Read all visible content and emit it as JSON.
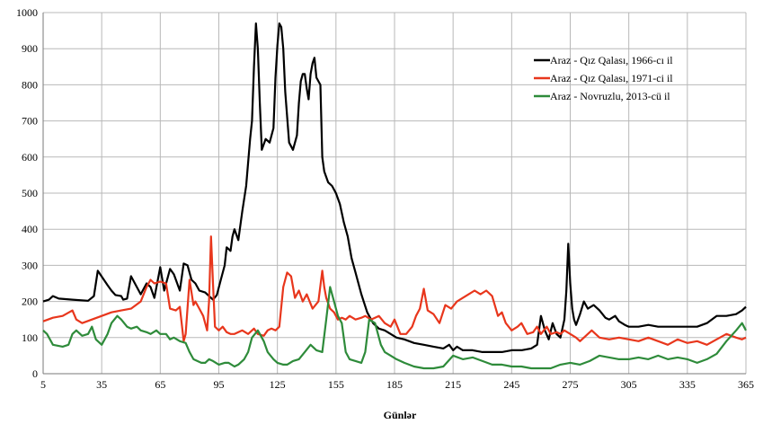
{
  "chart_data": {
    "type": "line",
    "title": "",
    "xlabel": "Günlər",
    "ylabel": "",
    "xlim": [
      5,
      365
    ],
    "ylim": [
      0,
      1000
    ],
    "xticks": [
      5,
      35,
      65,
      95,
      125,
      155,
      185,
      215,
      245,
      275,
      305,
      335,
      365
    ],
    "yticks": [
      0,
      100,
      200,
      300,
      400,
      500,
      600,
      700,
      800,
      900,
      1000
    ],
    "grid": true,
    "legend_position": "top-right",
    "series": [
      {
        "name": "Araz - Qız Qalası, 1966-cı il",
        "color": "#000000",
        "x": [
          5,
          8,
          10,
          13,
          20,
          28,
          31,
          33,
          38,
          40,
          42,
          45,
          46,
          48,
          50,
          55,
          58,
          60,
          62,
          65,
          67,
          70,
          72,
          75,
          77,
          79,
          81,
          83,
          85,
          88,
          90,
          92,
          94,
          96,
          98,
          99,
          101,
          102,
          103,
          105,
          107,
          109,
          111,
          112,
          113,
          114,
          115,
          116,
          117,
          119,
          121,
          123,
          124,
          125,
          126,
          127,
          128,
          129,
          131,
          133,
          135,
          136,
          137,
          138,
          139,
          140,
          141,
          142,
          143,
          144,
          145,
          147,
          148,
          149,
          151,
          153,
          155,
          157,
          159,
          161,
          163,
          165,
          168,
          171,
          174,
          177,
          180,
          183,
          186,
          190,
          195,
          200,
          205,
          210,
          213,
          215,
          217,
          220,
          225,
          230,
          235,
          240,
          245,
          250,
          255,
          258,
          260,
          262,
          264,
          266,
          268,
          270,
          272,
          273,
          274,
          275,
          276,
          277,
          278,
          280,
          282,
          284,
          287,
          290,
          293,
          295,
          298,
          300,
          303,
          305,
          310,
          315,
          320,
          325,
          330,
          335,
          340,
          345,
          350,
          355,
          360,
          363,
          365
        ],
        "values": [
          200,
          205,
          215,
          208,
          205,
          202,
          215,
          285,
          245,
          230,
          218,
          215,
          205,
          208,
          270,
          220,
          250,
          240,
          210,
          295,
          230,
          290,
          275,
          230,
          305,
          300,
          260,
          250,
          230,
          225,
          215,
          205,
          218,
          260,
          300,
          350,
          340,
          380,
          400,
          370,
          450,
          520,
          650,
          700,
          850,
          970,
          900,
          750,
          620,
          650,
          640,
          680,
          820,
          910,
          970,
          960,
          900,
          780,
          640,
          620,
          660,
          750,
          810,
          830,
          830,
          790,
          760,
          830,
          860,
          875,
          820,
          800,
          600,
          560,
          530,
          520,
          500,
          470,
          420,
          380,
          320,
          280,
          220,
          170,
          140,
          125,
          120,
          110,
          100,
          95,
          85,
          80,
          75,
          70,
          80,
          65,
          75,
          65,
          65,
          60,
          60,
          60,
          65,
          65,
          70,
          80,
          160,
          120,
          95,
          140,
          110,
          100,
          150,
          230,
          360,
          250,
          180,
          150,
          135,
          165,
          200,
          180,
          190,
          175,
          155,
          150,
          160,
          145,
          135,
          130,
          130,
          135,
          130,
          130,
          130,
          130,
          130,
          140,
          160,
          160,
          165,
          175,
          185
        ]
      },
      {
        "name": "Araz - Qız Qalası, 1971-ci il",
        "color": "#e8361c",
        "x": [
          5,
          10,
          15,
          20,
          22,
          25,
          30,
          35,
          40,
          45,
          50,
          55,
          58,
          60,
          62,
          65,
          68,
          70,
          73,
          75,
          77,
          78,
          80,
          82,
          83,
          85,
          87,
          89,
          90,
          91,
          92,
          93,
          95,
          97,
          99,
          101,
          103,
          105,
          107,
          110,
          113,
          115,
          118,
          120,
          122,
          124,
          126,
          128,
          130,
          132,
          134,
          136,
          138,
          140,
          143,
          146,
          148,
          149,
          150,
          152,
          154,
          156,
          158,
          160,
          162,
          165,
          168,
          170,
          173,
          175,
          177,
          180,
          183,
          185,
          188,
          191,
          194,
          196,
          198,
          200,
          202,
          205,
          208,
          211,
          214,
          217,
          220,
          223,
          226,
          229,
          232,
          235,
          238,
          240,
          242,
          245,
          248,
          250,
          253,
          256,
          258,
          260,
          263,
          265,
          268,
          270,
          272,
          275,
          278,
          280,
          283,
          286,
          290,
          295,
          300,
          305,
          310,
          315,
          320,
          325,
          330,
          335,
          340,
          345,
          350,
          355,
          360,
          363,
          365
        ],
        "values": [
          145,
          155,
          160,
          175,
          150,
          140,
          150,
          160,
          170,
          175,
          180,
          200,
          240,
          260,
          250,
          255,
          250,
          180,
          175,
          185,
          90,
          110,
          260,
          190,
          200,
          180,
          160,
          120,
          200,
          380,
          250,
          130,
          120,
          130,
          115,
          110,
          110,
          115,
          120,
          110,
          125,
          110,
          105,
          120,
          125,
          120,
          130,
          240,
          280,
          270,
          210,
          230,
          200,
          220,
          180,
          200,
          285,
          240,
          210,
          180,
          170,
          150,
          155,
          150,
          160,
          150,
          155,
          160,
          150,
          155,
          160,
          140,
          130,
          150,
          110,
          110,
          130,
          160,
          180,
          235,
          175,
          165,
          140,
          190,
          180,
          200,
          210,
          220,
          230,
          220,
          230,
          215,
          160,
          170,
          140,
          120,
          130,
          140,
          110,
          115,
          130,
          110,
          130,
          110,
          115,
          110,
          120,
          110,
          100,
          90,
          105,
          120,
          100,
          95,
          100,
          95,
          90,
          100,
          90,
          80,
          95,
          85,
          90,
          80,
          95,
          110,
          100,
          95,
          100
        ]
      },
      {
        "name": "Araz - Novruzlu, 2013-cü il",
        "color": "#2e8b3a",
        "x": [
          5,
          7,
          10,
          15,
          18,
          20,
          22,
          25,
          28,
          30,
          32,
          35,
          38,
          40,
          43,
          45,
          48,
          50,
          53,
          55,
          58,
          60,
          63,
          65,
          68,
          70,
          72,
          75,
          78,
          80,
          82,
          84,
          86,
          88,
          90,
          92,
          95,
          98,
          100,
          103,
          105,
          108,
          110,
          112,
          115,
          118,
          120,
          123,
          125,
          128,
          130,
          133,
          136,
          139,
          142,
          145,
          148,
          150,
          152,
          154,
          156,
          158,
          160,
          162,
          165,
          168,
          170,
          172,
          175,
          178,
          180,
          183,
          186,
          190,
          195,
          200,
          205,
          210,
          215,
          220,
          225,
          230,
          235,
          240,
          245,
          250,
          255,
          260,
          265,
          270,
          275,
          280,
          285,
          290,
          295,
          300,
          305,
          310,
          315,
          320,
          325,
          330,
          335,
          340,
          345,
          350,
          355,
          360,
          363,
          365
        ],
        "values": [
          120,
          110,
          80,
          75,
          80,
          110,
          120,
          105,
          110,
          130,
          95,
          80,
          110,
          140,
          160,
          150,
          130,
          125,
          130,
          120,
          115,
          110,
          120,
          110,
          110,
          95,
          100,
          90,
          85,
          60,
          40,
          35,
          30,
          30,
          40,
          35,
          25,
          30,
          30,
          20,
          25,
          40,
          60,
          100,
          120,
          90,
          60,
          40,
          30,
          25,
          25,
          35,
          40,
          60,
          80,
          65,
          60,
          150,
          240,
          200,
          160,
          140,
          60,
          40,
          35,
          30,
          60,
          150,
          140,
          80,
          60,
          50,
          40,
          30,
          20,
          15,
          15,
          20,
          50,
          40,
          45,
          35,
          25,
          25,
          20,
          20,
          15,
          15,
          15,
          25,
          30,
          25,
          35,
          50,
          45,
          40,
          40,
          45,
          40,
          50,
          40,
          45,
          40,
          30,
          40,
          55,
          90,
          120,
          140,
          120
        ]
      }
    ]
  }
}
